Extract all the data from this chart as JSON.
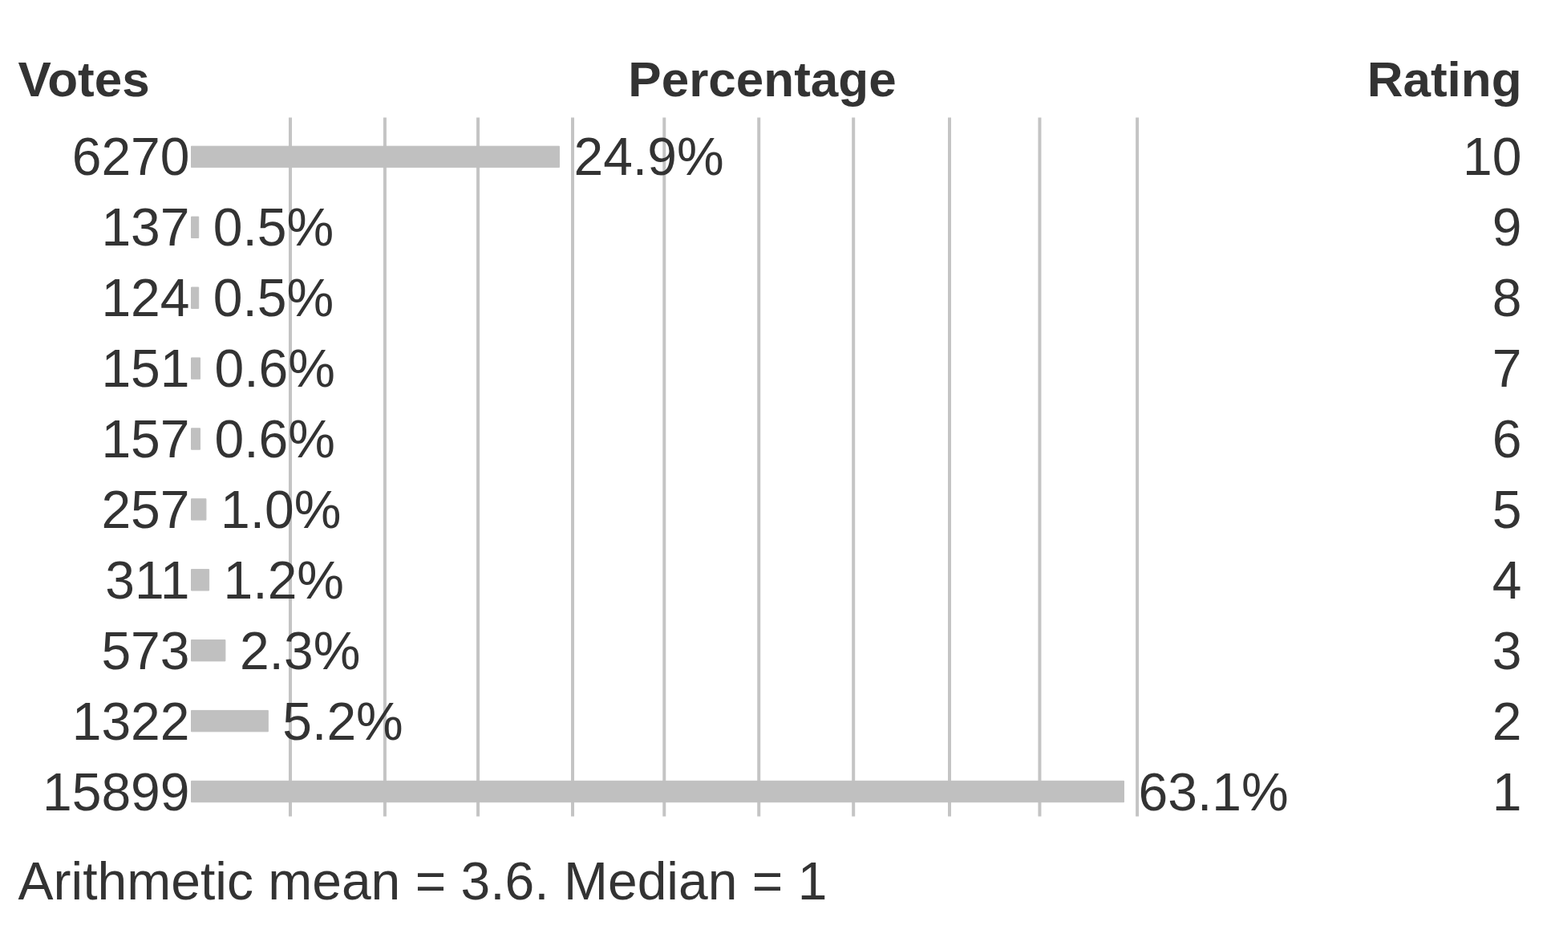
{
  "chart_data": {
    "type": "bar",
    "orientation": "horizontal",
    "title": "Percentage",
    "ylabel": "Votes",
    "y2label": "Rating",
    "categories": [
      "10",
      "9",
      "8",
      "7",
      "6",
      "5",
      "4",
      "3",
      "2",
      "1"
    ],
    "values": [
      24.9,
      0.5,
      0.5,
      0.6,
      0.6,
      1.0,
      1.2,
      2.3,
      5.2,
      63.1
    ],
    "value_labels": [
      "24.9%",
      "0.5%",
      "0.5%",
      "0.6%",
      "0.6%",
      "1.0%",
      "1.2%",
      "2.3%",
      "5.2%",
      "63.1%"
    ],
    "color": "#c0c0c0",
    "xticks": [
      {
        "value": 6.7,
        "label": null
      },
      {
        "value": 13.1,
        "label": null
      },
      {
        "value": 19.4,
        "label": null
      },
      {
        "value": 25.8,
        "label": null
      },
      {
        "value": 32.0,
        "label": null
      },
      {
        "value": 38.4,
        "label": null
      },
      {
        "value": 44.8,
        "label": null
      },
      {
        "value": 51.3,
        "label": null
      },
      {
        "value": 57.4,
        "label": null
      },
      {
        "value": 64.0,
        "label": null
      }
    ],
    "tick_labels": false,
    "grid": "x",
    "annotations": [
      "6270",
      "137",
      "124",
      "151",
      "157",
      "257",
      "311",
      "573",
      "1322",
      "15899",
      "Arithmetic mean = 3.6.  Median = 1"
    ]
  }
}
